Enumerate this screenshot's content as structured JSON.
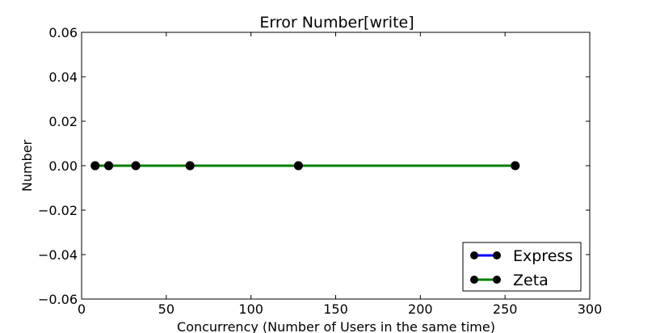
{
  "chart_data": {
    "type": "line",
    "title": "Error Number[write]",
    "xlabel": "Concurrency (Number of Users in the same time)",
    "ylabel": "Number",
    "xlim": [
      0,
      300
    ],
    "ylim": [
      -0.06,
      0.06
    ],
    "x_ticks": [
      0,
      50,
      100,
      150,
      200,
      250,
      300
    ],
    "x_tick_labels": [
      "0",
      "50",
      "100",
      "150",
      "200",
      "250",
      "300"
    ],
    "y_ticks": [
      -0.06,
      -0.04,
      -0.02,
      0.0,
      0.02,
      0.04,
      0.06
    ],
    "y_tick_labels": [
      "−0.06",
      "−0.04",
      "−0.02",
      "0.00",
      "0.02",
      "0.04",
      "0.06"
    ],
    "grid": false,
    "legend_position": "bottom-right",
    "x": [
      8,
      16,
      32,
      64,
      128,
      256
    ],
    "series": [
      {
        "name": "Express",
        "color": "#0000ff",
        "marker_color": "#000000",
        "values": [
          0,
          0,
          0,
          0,
          0,
          0
        ]
      },
      {
        "name": "Zeta",
        "color": "#008000",
        "marker_color": "#000000",
        "values": [
          0,
          0,
          0,
          0,
          0,
          0
        ]
      }
    ]
  }
}
